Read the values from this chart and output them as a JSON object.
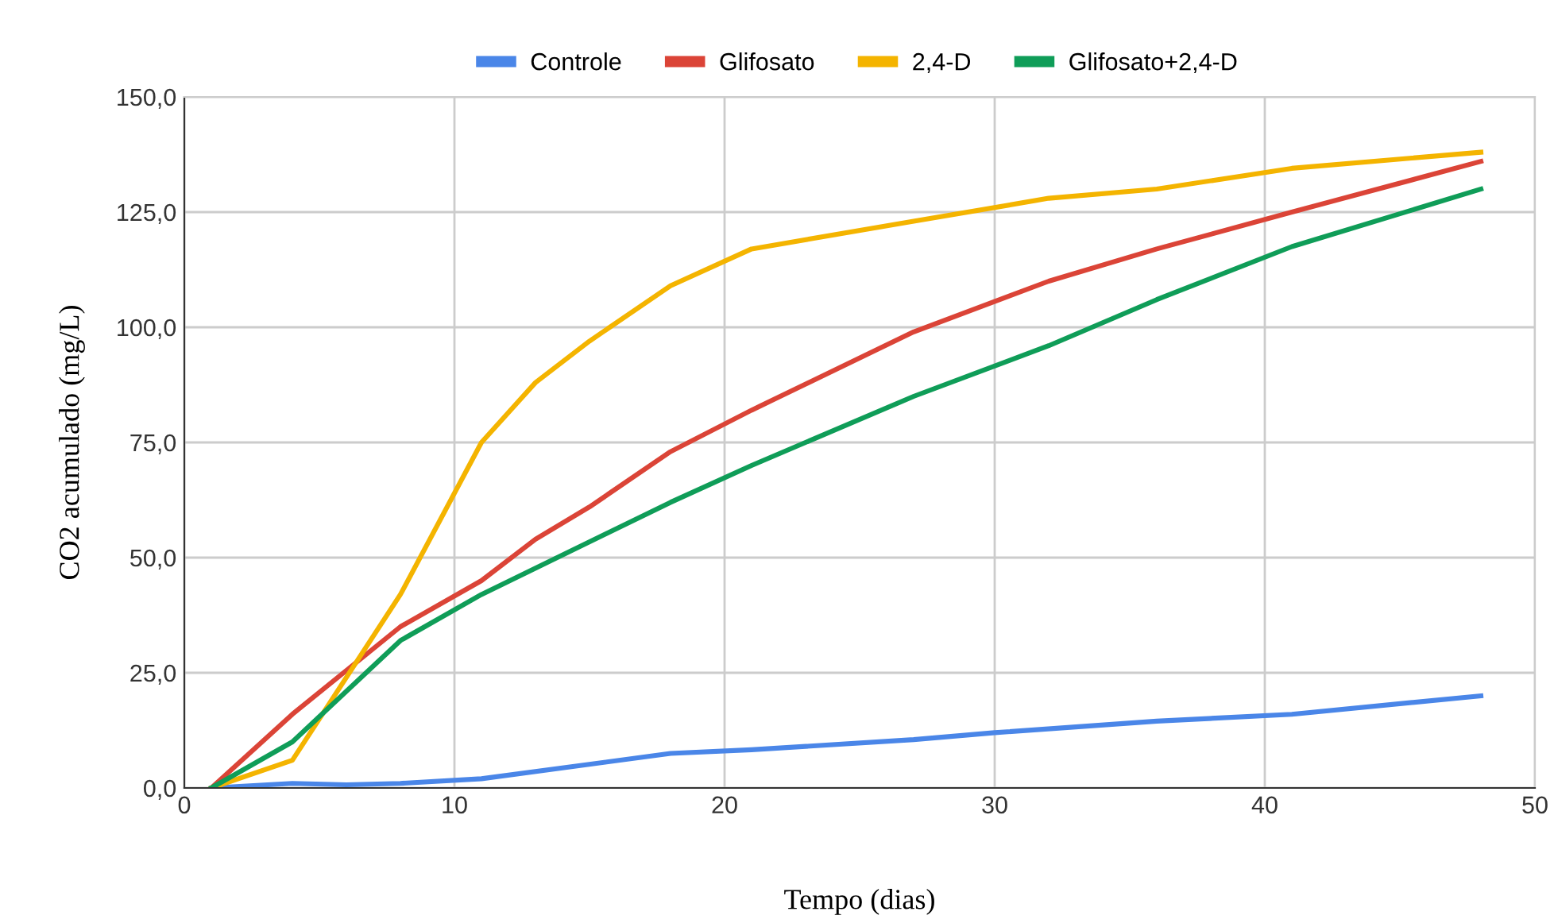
{
  "chart_data": {
    "type": "line",
    "xlabel": "Tempo (dias)",
    "ylabel": "CO2 acumulado (mg/L)",
    "xlim": [
      0,
      50
    ],
    "xticks": [
      0,
      10,
      20,
      30,
      40,
      50
    ],
    "ylim": [
      0,
      150
    ],
    "yticks": [
      {
        "value": 0,
        "label": "0,0"
      },
      {
        "value": 25,
        "label": "25,0"
      },
      {
        "value": 50,
        "label": "50,0"
      },
      {
        "value": 75,
        "label": "75,0"
      },
      {
        "value": 100,
        "label": "100,0"
      },
      {
        "value": 125,
        "label": "125,0"
      },
      {
        "value": 150,
        "label": "150,0"
      }
    ],
    "grid": true,
    "legend": "top",
    "marker": "none",
    "line_style": "solid",
    "series": [
      {
        "name": "Controle",
        "color": "#4a86e8",
        "x": [
          1,
          4,
          6,
          8,
          11,
          18,
          21,
          27,
          30,
          36,
          41,
          48
        ],
        "values": [
          0,
          1,
          0.7,
          1,
          2,
          7.5,
          8.3,
          10.5,
          12,
          14.5,
          16,
          20
        ]
      },
      {
        "name": "Glifosato",
        "color": "#db4437",
        "x": [
          1,
          4,
          8,
          11,
          13,
          15,
          18,
          21,
          27,
          32,
          36,
          41,
          48
        ],
        "values": [
          0,
          16,
          35,
          45,
          54,
          61,
          73,
          82,
          99,
          110,
          117,
          125,
          136
        ]
      },
      {
        "name": "2,4-D",
        "color": "#f4b400",
        "x": [
          1,
          4,
          8,
          11,
          13,
          15,
          18,
          21,
          27,
          32,
          36,
          41,
          48
        ],
        "values": [
          0,
          6,
          42,
          75,
          88,
          97,
          109,
          117,
          123,
          128,
          130,
          134.5,
          138
        ]
      },
      {
        "name": "Glifosato+2,4-D",
        "color": "#0f9d58",
        "x": [
          1,
          4,
          8,
          11,
          18,
          21,
          27,
          32,
          36,
          41,
          48
        ],
        "values": [
          0,
          10,
          32,
          42,
          62,
          70,
          85,
          96,
          106,
          117.5,
          130
        ]
      }
    ]
  }
}
